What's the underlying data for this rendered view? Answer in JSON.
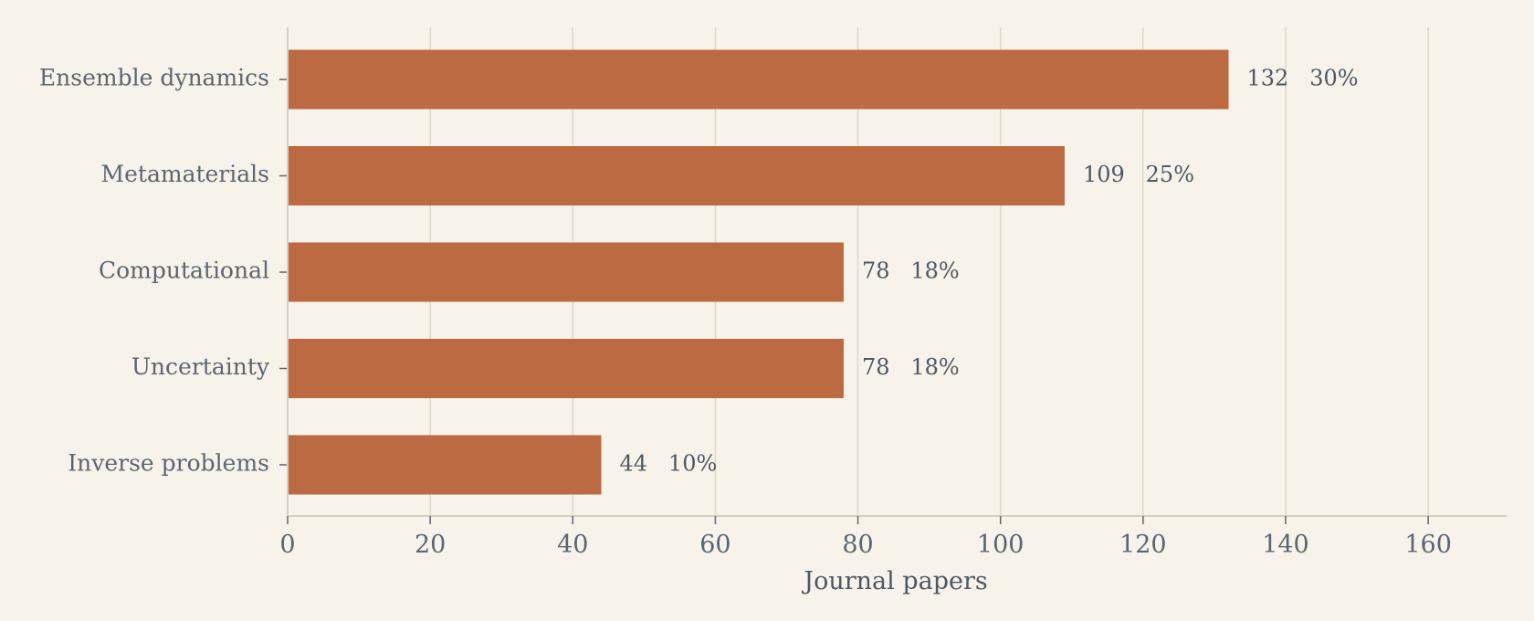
{
  "chart_data": {
    "type": "bar",
    "orientation": "horizontal",
    "categories": [
      "Ensemble dynamics",
      "Metamaterials",
      "Computational",
      "Uncertainty",
      "Inverse problems"
    ],
    "values": [
      132,
      109,
      78,
      78,
      44
    ],
    "value_labels": [
      "132   30%",
      "109   25%",
      "78   18%",
      "78   18%",
      "44   10%"
    ],
    "xlabel": "Journal papers",
    "ylabel": "",
    "title": "",
    "xlim": [
      0,
      171
    ],
    "xticks": [
      0,
      20,
      40,
      60,
      80,
      100,
      120,
      140,
      160
    ],
    "grid": "vertical",
    "bar_color": "#bc6a42",
    "background_color": "#f7f3eb"
  }
}
